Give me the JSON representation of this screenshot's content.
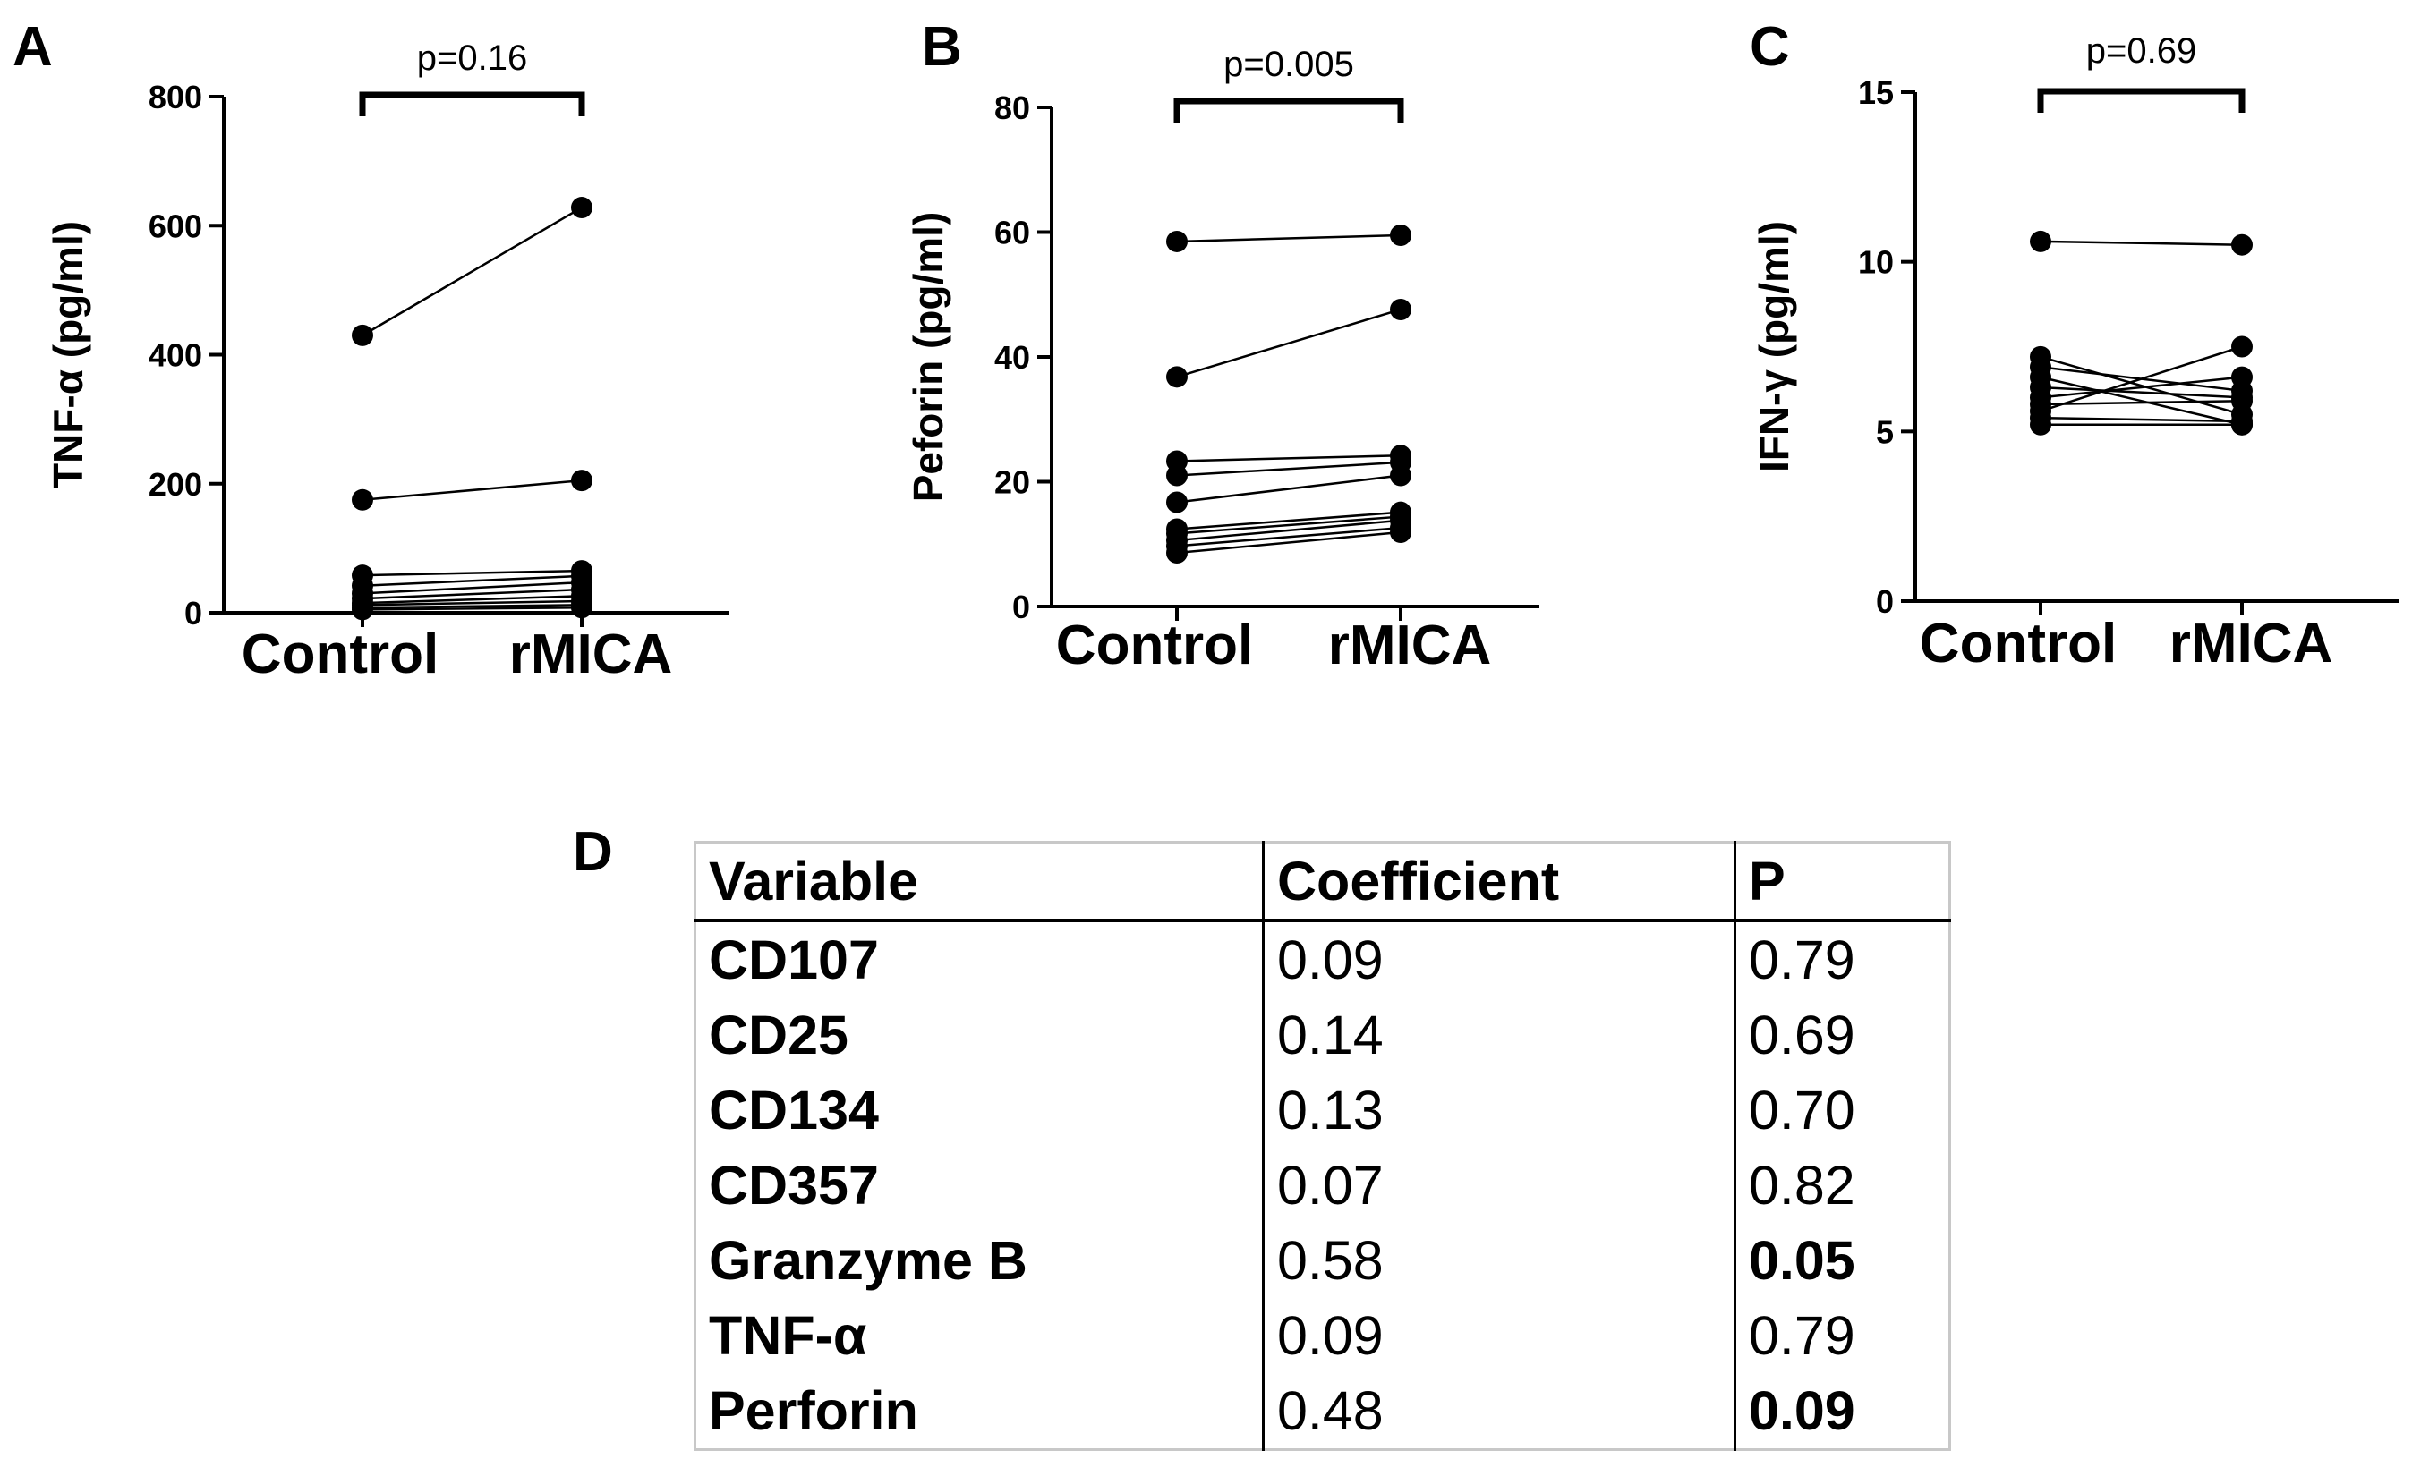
{
  "panels": {
    "A": "A",
    "B": "B",
    "C": "C",
    "D": "D"
  },
  "chart_data": [
    {
      "type": "line",
      "panel": "A",
      "ylabel": "TNF-α (pg/ml)",
      "categories": [
        "Control",
        "rMICA"
      ],
      "ylim": [
        0,
        800
      ],
      "yticks": [
        "0",
        "200",
        "400",
        "600",
        "800"
      ],
      "pvalue": "p=0.16",
      "pairs": [
        [
          430,
          628
        ],
        [
          175,
          205
        ],
        [
          58,
          65
        ],
        [
          42,
          57
        ],
        [
          30,
          47
        ],
        [
          22,
          36
        ],
        [
          15,
          26
        ],
        [
          12,
          18
        ],
        [
          8,
          12
        ],
        [
          5,
          8
        ]
      ]
    },
    {
      "type": "line",
      "panel": "B",
      "ylabel": "Peforin (pg/ml)",
      "categories": [
        "Control",
        "rMICA"
      ],
      "ylim": [
        0,
        80
      ],
      "yticks": [
        "0",
        "20",
        "40",
        "60",
        "80"
      ],
      "pvalue": "p=0.005",
      "pairs": [
        [
          58.5,
          59.5
        ],
        [
          36.8,
          47.6
        ],
        [
          23.3,
          24.2
        ],
        [
          21.0,
          23.1
        ],
        [
          16.7,
          21.0
        ],
        [
          12.4,
          15.1
        ],
        [
          11.7,
          14.4
        ],
        [
          10.6,
          13.8
        ],
        [
          9.7,
          12.6
        ],
        [
          8.6,
          11.9
        ]
      ]
    },
    {
      "type": "line",
      "panel": "C",
      "ylabel": "IFN-γ (pg/ml)",
      "categories": [
        "Control",
        "rMICA"
      ],
      "ylim": [
        0,
        15
      ],
      "yticks": [
        "0",
        "5",
        "10",
        "15"
      ],
      "pvalue": "p=0.69",
      "pairs": [
        [
          10.6,
          10.5
        ],
        [
          7.2,
          5.5
        ],
        [
          6.9,
          6.2
        ],
        [
          6.6,
          5.2
        ],
        [
          6.3,
          6.0
        ],
        [
          6.0,
          6.6
        ],
        [
          5.8,
          5.9
        ],
        [
          5.6,
          7.5
        ],
        [
          5.4,
          5.3
        ],
        [
          5.2,
          5.2
        ]
      ]
    }
  ],
  "table": {
    "headers": [
      "Variable",
      "Coefficient",
      "P"
    ],
    "rows": [
      {
        "variable": "CD107",
        "coefficient": "0.09",
        "p": "0.79",
        "sig": false
      },
      {
        "variable": "CD25",
        "coefficient": "0.14",
        "p": "0.69",
        "sig": false
      },
      {
        "variable": "CD134",
        "coefficient": "0.13",
        "p": "0.70",
        "sig": false
      },
      {
        "variable": "CD357",
        "coefficient": "0.07",
        "p": "0.82",
        "sig": false
      },
      {
        "variable": "Granzyme B",
        "coefficient": "0.58",
        "p": "0.05",
        "sig": true
      },
      {
        "variable": "TNF-α",
        "coefficient": "0.09",
        "p": "0.79",
        "sig": false
      },
      {
        "variable": "Perforin",
        "coefficient": "0.48",
        "p": "0.09",
        "sig": true
      }
    ]
  }
}
